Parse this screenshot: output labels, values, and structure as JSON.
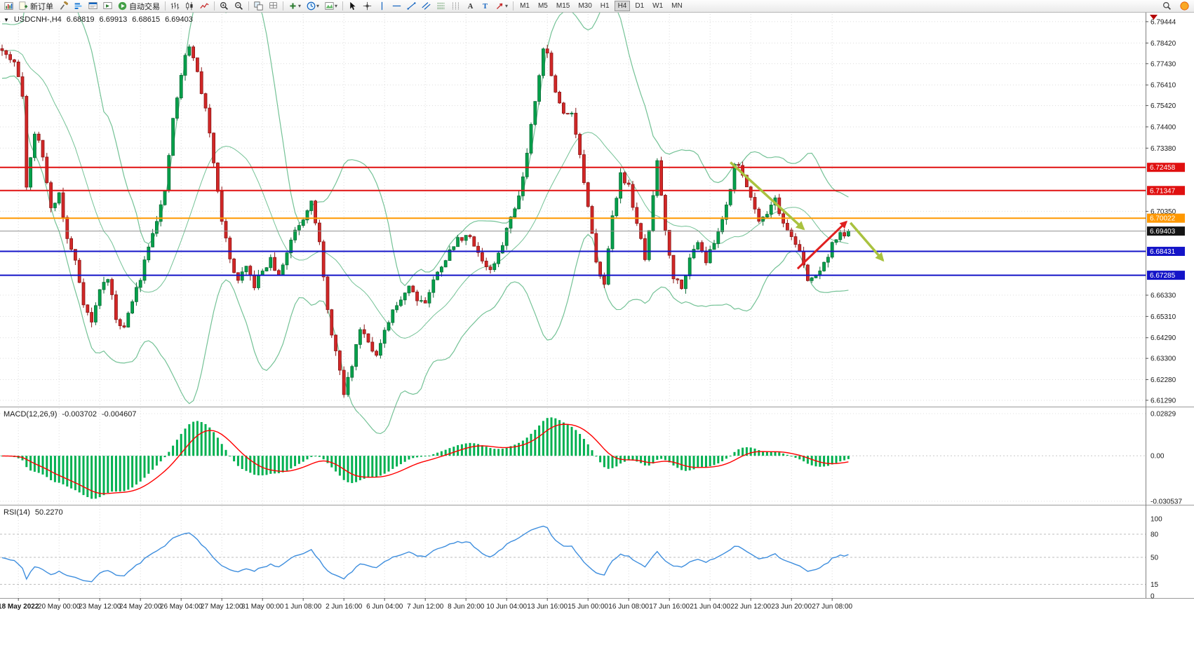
{
  "header": {
    "collapse_glyph": "▼",
    "symbol_period": "USDCNH-,H4",
    "open": "6.68819",
    "high": "6.69913",
    "low": "6.68615",
    "close": "6.69403"
  },
  "toolbar": {
    "items": [
      {
        "name": "chart-window",
        "icon": "chartwin"
      },
      {
        "name": "new-order",
        "icon": "order",
        "label": "新订单"
      },
      {
        "name": "metaeditor",
        "icon": "hammer"
      },
      {
        "name": "market-depth",
        "icon": "depth"
      },
      {
        "name": "terminal",
        "icon": "terminal"
      },
      {
        "name": "strategy-tester",
        "icon": "tester"
      },
      {
        "name": "auto-trading",
        "icon": "play",
        "label": "自动交易"
      },
      {
        "sep": true
      },
      {
        "name": "bar-chart-mode",
        "icon": "barchart"
      },
      {
        "name": "candlestick-mode",
        "icon": "candlemode"
      },
      {
        "name": "line-chart-mode",
        "icon": "linemode"
      },
      {
        "sep": true
      },
      {
        "name": "zoom-in",
        "icon": "zoomin"
      },
      {
        "name": "zoom-out",
        "icon": "zoomout"
      },
      {
        "sep": true
      },
      {
        "name": "auto-arrange",
        "icon": "arrange"
      },
      {
        "name": "grid",
        "icon": "grid"
      },
      {
        "sep": true
      },
      {
        "name": "indicators",
        "icon": "indicators",
        "dropdown": true
      },
      {
        "name": "periods",
        "icon": "clock",
        "dropdown": true
      },
      {
        "name": "templates",
        "icon": "template",
        "dropdown": true
      },
      {
        "sep": true
      },
      {
        "name": "cursor",
        "icon": "cursor"
      },
      {
        "name": "crosshair",
        "icon": "crosshair"
      },
      {
        "name": "vertical-line",
        "icon": "vline"
      },
      {
        "name": "horizontal-line",
        "icon": "hline"
      },
      {
        "name": "trendline",
        "icon": "trend"
      },
      {
        "name": "equidistant-channel",
        "icon": "channel"
      },
      {
        "name": "fibonacci",
        "icon": "fibo"
      },
      {
        "name": "cycle-lines",
        "icon": "cycles"
      },
      {
        "name": "text",
        "icon": "textA"
      },
      {
        "name": "text-label",
        "icon": "textT"
      },
      {
        "name": "arrows-object",
        "icon": "arrowobj",
        "dropdown": true
      },
      {
        "sep": true
      }
    ],
    "timeframes": [
      "M1",
      "M5",
      "M15",
      "M30",
      "H1",
      "H4",
      "D1",
      "W1",
      "MN"
    ],
    "active_timeframe": "H4",
    "right_items": [
      {
        "name": "search",
        "icon": "magnifier"
      },
      {
        "name": "account",
        "icon": "account"
      }
    ]
  },
  "indicators": {
    "macd": {
      "label": "MACD(12,26,9)",
      "main_value": "-0.003702",
      "signal_value": "-0.004607",
      "axis_labels": [
        "0.02829",
        "0.00",
        "-0.030537"
      ]
    },
    "rsi": {
      "label": "RSI(14)",
      "value": "50.2270",
      "axis_labels": [
        "100",
        "80",
        "50",
        "15",
        "0"
      ],
      "levels": [
        80,
        50,
        15
      ]
    }
  },
  "price_axis": [
    {
      "text": "6.79444",
      "type": "tick"
    },
    {
      "text": "6.78420",
      "type": "tick"
    },
    {
      "text": "6.77430",
      "type": "tick"
    },
    {
      "text": "6.76410",
      "type": "tick"
    },
    {
      "text": "6.75420",
      "type": "tick"
    },
    {
      "text": "6.74400",
      "type": "tick"
    },
    {
      "text": "6.73380",
      "type": "tick"
    },
    {
      "text": "6.72458",
      "type": "red"
    },
    {
      "text": "6.71347",
      "type": "red"
    },
    {
      "text": "6.70350",
      "type": "tick"
    },
    {
      "text": "6.70022",
      "type": "orange"
    },
    {
      "text": "6.69403",
      "type": "bid"
    },
    {
      "text": "6.68431",
      "type": "blue"
    },
    {
      "text": "6.67285",
      "type": "blue"
    },
    {
      "text": "6.66330",
      "type": "tick"
    },
    {
      "text": "6.65310",
      "type": "tick"
    },
    {
      "text": "6.64290",
      "type": "tick"
    },
    {
      "text": "6.63300",
      "type": "tick"
    },
    {
      "text": "6.62280",
      "type": "tick"
    },
    {
      "text": "6.61290",
      "type": "tick"
    }
  ],
  "time_axis": {
    "start_index": 4,
    "step": 10,
    "labels": [
      "18 May 2022",
      "20 May 00:00",
      "23 May 12:00",
      "24 May 20:00",
      "26 May 04:00",
      "27 May 12:00",
      "31 May 00:00",
      "1 Jun 08:00",
      "2 Jun 16:00",
      "6 Jun 04:00",
      "7 Jun 12:00",
      "8 Jun 20:00",
      "10 Jun 04:00",
      "13 Jun 16:00",
      "15 Jun 00:00",
      "16 Jun 08:00",
      "17 Jun 16:00",
      "21 Jun 04:00",
      "22 Jun 12:00",
      "23 Jun 20:00",
      "27 Jun 08:00"
    ]
  },
  "chart_data": {
    "type": "candlestick",
    "symbol": "USDCNH-",
    "timeframe": "H4",
    "candle_count": 209,
    "last_close": 6.69403,
    "price_range": {
      "min": 6.6102,
      "max": 6.7981
    },
    "price_path": [
      [
        0,
        6.782
      ],
      [
        3,
        6.774
      ],
      [
        5,
        6.76
      ],
      [
        6,
        6.715
      ],
      [
        8,
        6.742
      ],
      [
        10,
        6.73
      ],
      [
        12,
        6.705
      ],
      [
        14,
        6.712
      ],
      [
        16,
        6.69
      ],
      [
        18,
        6.68
      ],
      [
        20,
        6.66
      ],
      [
        22,
        6.65
      ],
      [
        24,
        6.666
      ],
      [
        26,
        6.672
      ],
      [
        28,
        6.652
      ],
      [
        30,
        6.648
      ],
      [
        32,
        6.66
      ],
      [
        34,
        6.672
      ],
      [
        36,
        6.688
      ],
      [
        38,
        6.7
      ],
      [
        40,
        6.712
      ],
      [
        42,
        6.748
      ],
      [
        44,
        6.768
      ],
      [
        45,
        6.778
      ],
      [
        46,
        6.783
      ],
      [
        48,
        6.77
      ],
      [
        50,
        6.752
      ],
      [
        52,
        6.728
      ],
      [
        54,
        6.7
      ],
      [
        56,
        6.68
      ],
      [
        58,
        6.67
      ],
      [
        60,
        6.676
      ],
      [
        62,
        6.668
      ],
      [
        64,
        6.675
      ],
      [
        66,
        6.68
      ],
      [
        68,
        6.672
      ],
      [
        70,
        6.684
      ],
      [
        72,
        6.695
      ],
      [
        74,
        6.7
      ],
      [
        76,
        6.71
      ],
      [
        78,
        6.688
      ],
      [
        80,
        6.655
      ],
      [
        82,
        6.636
      ],
      [
        84,
        6.616
      ],
      [
        86,
        6.63
      ],
      [
        88,
        6.648
      ],
      [
        90,
        6.642
      ],
      [
        92,
        6.634
      ],
      [
        94,
        6.645
      ],
      [
        96,
        6.655
      ],
      [
        98,
        6.662
      ],
      [
        100,
        6.668
      ],
      [
        102,
        6.662
      ],
      [
        104,
        6.66
      ],
      [
        106,
        6.67
      ],
      [
        108,
        6.678
      ],
      [
        110,
        6.684
      ],
      [
        112,
        6.69
      ],
      [
        114,
        6.692
      ],
      [
        116,
        6.688
      ],
      [
        118,
        6.68
      ],
      [
        120,
        6.675
      ],
      [
        122,
        6.682
      ],
      [
        124,
        6.695
      ],
      [
        126,
        6.705
      ],
      [
        128,
        6.72
      ],
      [
        130,
        6.745
      ],
      [
        132,
        6.77
      ],
      [
        133,
        6.7815
      ],
      [
        134,
        6.779
      ],
      [
        136,
        6.76
      ],
      [
        138,
        6.75
      ],
      [
        140,
        6.752
      ],
      [
        142,
        6.73
      ],
      [
        144,
        6.705
      ],
      [
        146,
        6.678
      ],
      [
        148,
        6.67
      ],
      [
        150,
        6.7
      ],
      [
        152,
        6.722
      ],
      [
        154,
        6.715
      ],
      [
        156,
        6.698
      ],
      [
        158,
        6.68
      ],
      [
        160,
        6.71
      ],
      [
        161,
        6.728
      ],
      [
        163,
        6.695
      ],
      [
        165,
        6.672
      ],
      [
        167,
        6.668
      ],
      [
        169,
        6.68
      ],
      [
        171,
        6.69
      ],
      [
        173,
        6.68
      ],
      [
        175,
        6.688
      ],
      [
        177,
        6.7
      ],
      [
        179,
        6.715
      ],
      [
        180,
        6.726
      ],
      [
        182,
        6.722
      ],
      [
        184,
        6.71
      ],
      [
        186,
        6.7
      ],
      [
        188,
        6.703
      ],
      [
        190,
        6.71
      ],
      [
        192,
        6.697
      ],
      [
        194,
        6.692
      ],
      [
        196,
        6.684
      ],
      [
        198,
        6.67
      ],
      [
        200,
        6.673
      ],
      [
        202,
        6.678
      ],
      [
        204,
        6.688
      ],
      [
        206,
        6.692
      ],
      [
        208,
        6.694
      ]
    ],
    "bollinger": {
      "period": 20,
      "deviation": 2,
      "color": "#74c296"
    },
    "macd_scale": {
      "max": 0.02829,
      "min": -0.030537
    },
    "rsi_scale": {
      "max": 100,
      "min": 0
    },
    "horizontal_lines": [
      {
        "price": 6.72458,
        "color": "#e01010",
        "width": 2
      },
      {
        "price": 6.71347,
        "color": "#e01010",
        "width": 2
      },
      {
        "price": 6.70022,
        "color": "#ff9800",
        "width": 2
      },
      {
        "price": 6.68431,
        "color": "#1414c8",
        "width": 2
      },
      {
        "price": 6.67285,
        "color": "#1414c8",
        "width": 2
      }
    ],
    "bid_line": {
      "price": 6.69403,
      "color": "#909090"
    },
    "arrows": [
      {
        "name": "down-arrow-1",
        "color": "#a9c23f",
        "width": 3.5,
        "from": [
          179,
          6.727
        ],
        "to": [
          197,
          6.695
        ]
      },
      {
        "name": "up-arrow",
        "color": "#e02020",
        "width": 3,
        "from": [
          195.5,
          6.676
        ],
        "to": [
          207.5,
          6.6985
        ]
      },
      {
        "name": "down-arrow-2",
        "color": "#a9c23f",
        "width": 3.5,
        "from": [
          208.5,
          6.698
        ],
        "to": [
          216.5,
          6.68
        ]
      }
    ]
  }
}
